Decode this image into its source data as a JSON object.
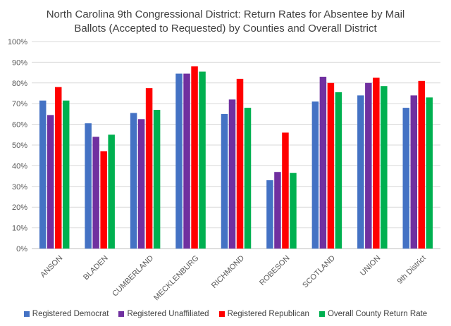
{
  "chart_data": {
    "type": "bar",
    "title_line1": "North Carolina 9th Congressional District: Return Rates for Absentee by Mail",
    "title_line2": "Ballots (Accepted to Requested) by Counties and Overall District",
    "categories": [
      "ANSON",
      "BLADEN",
      "CUMBERLAND",
      "MECKLENBURG",
      "RICHMOND",
      "ROBESON",
      "SCOTLAND",
      "UNION",
      "9th District"
    ],
    "series": [
      {
        "name": "Registered Democrat",
        "color": "#4472C4",
        "values": [
          71.5,
          60.5,
          65.5,
          84.5,
          65,
          33,
          71,
          74,
          68
        ]
      },
      {
        "name": "Registered Unaffiliated",
        "color": "#7030A0",
        "values": [
          64.5,
          54,
          62.5,
          84.5,
          72,
          37,
          83,
          80,
          74
        ]
      },
      {
        "name": "Registered Republican",
        "color": "#FF0000",
        "values": [
          78,
          47,
          77.5,
          88,
          82,
          56,
          80,
          82.5,
          81
        ]
      },
      {
        "name": "Overall County Return Rate",
        "color": "#00B050",
        "values": [
          71.5,
          55,
          67,
          85.5,
          68,
          36.5,
          75.5,
          78.5,
          73
        ]
      }
    ],
    "y_ticks": [
      "0%",
      "10%",
      "20%",
      "30%",
      "40%",
      "50%",
      "60%",
      "70%",
      "80%",
      "90%",
      "100%"
    ],
    "ylim": [
      0,
      100
    ],
    "grid": true,
    "legend_position": "bottom"
  }
}
